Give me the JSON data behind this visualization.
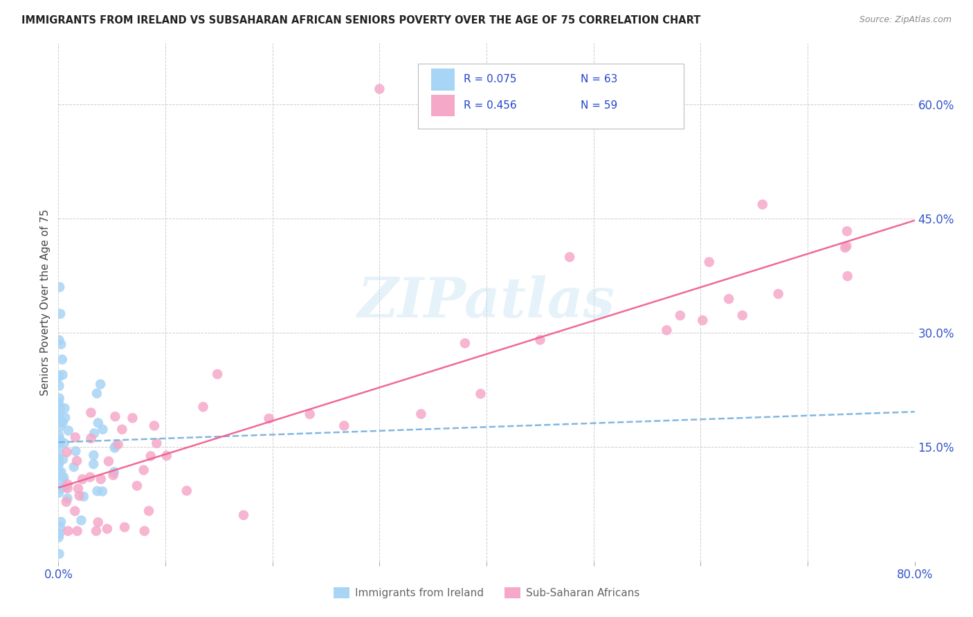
{
  "title": "IMMIGRANTS FROM IRELAND VS SUBSAHARAN AFRICAN SENIORS POVERTY OVER THE AGE OF 75 CORRELATION CHART",
  "source": "Source: ZipAtlas.com",
  "ylabel": "Seniors Poverty Over the Age of 75",
  "xlim": [
    0.0,
    0.8
  ],
  "ylim": [
    0.0,
    0.68
  ],
  "right_yticks": [
    0.15,
    0.3,
    0.45,
    0.6
  ],
  "right_yticklabels": [
    "15.0%",
    "30.0%",
    "45.0%",
    "60.0%"
  ],
  "watermark": "ZIPatlas",
  "color_ireland": "#a8d4f5",
  "color_africa": "#f5a8c8",
  "color_ireland_line": "#7ab3e0",
  "color_africa_line": "#f06090",
  "legend_items": [
    {
      "color": "#a8d4f5",
      "r": "R = 0.075",
      "n": "N = 63"
    },
    {
      "color": "#f5a8c8",
      "r": "R = 0.456",
      "n": "N = 59"
    }
  ],
  "bottom_legend": [
    {
      "color": "#a8d4f5",
      "label": "Immigrants from Ireland"
    },
    {
      "color": "#f5a8c8",
      "label": "Sub-Saharan Africans"
    }
  ]
}
